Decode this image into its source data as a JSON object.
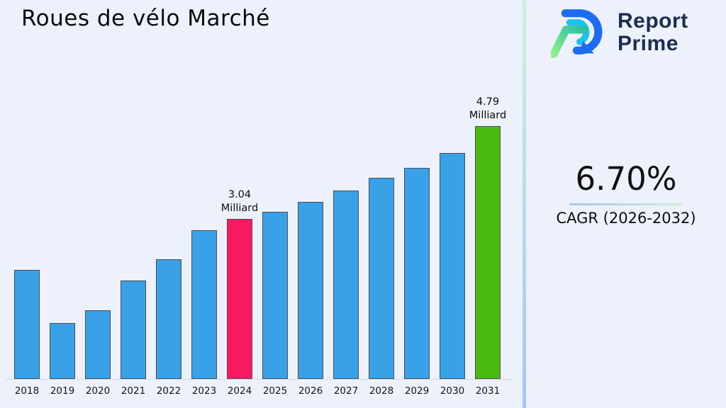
{
  "title": "Roues de vélo Marché",
  "logo": {
    "line1": "Report",
    "line2": "Prime",
    "icon": "report-prime-r-mark"
  },
  "cagr": {
    "value": "6.70%",
    "label": "CAGR (2026-2032)"
  },
  "chart_data": {
    "type": "bar",
    "title": "Roues de vélo Marché",
    "categories": [
      "2018",
      "2019",
      "2020",
      "2021",
      "2022",
      "2023",
      "2024",
      "2025",
      "2026",
      "2027",
      "2028",
      "2029",
      "2030",
      "2031"
    ],
    "values": [
      2.07,
      1.06,
      1.3,
      1.87,
      2.27,
      2.82,
      3.04,
      3.17,
      3.36,
      3.57,
      3.81,
      4.0,
      4.28,
      4.79
    ],
    "unit": "Milliard",
    "ylabel": "",
    "xlabel": "",
    "ylim": [
      0,
      5.1
    ],
    "grid": false,
    "legend": "none",
    "annotations": [
      {
        "year": "2024",
        "value_line": "3.04",
        "unit_line": "Milliard"
      },
      {
        "year": "2031",
        "value_line": "4.79",
        "unit_line": "Milliard"
      }
    ],
    "highlights": {
      "2024": "#fa1a62",
      "2031": "#4bba0e"
    }
  },
  "colors": {
    "background": "#ecf1fb",
    "bar_default": "#38a1e8",
    "bar_highlight_2024": "#fa1a62",
    "bar_highlight_2031": "#4bba0e",
    "bar_border": "#4a4f58",
    "divider_top": "#cdf2da",
    "divider_bottom": "#a6c6f5",
    "underline_left": "#a9c5f0",
    "underline_right": "#c9f2cf",
    "logo_navy": "#1d2c52",
    "logo_blue": "#1e6df0",
    "logo_cyan": "#19c3ea",
    "logo_green_light": "#8ef08c",
    "logo_green_dark": "#2fbfa0"
  }
}
